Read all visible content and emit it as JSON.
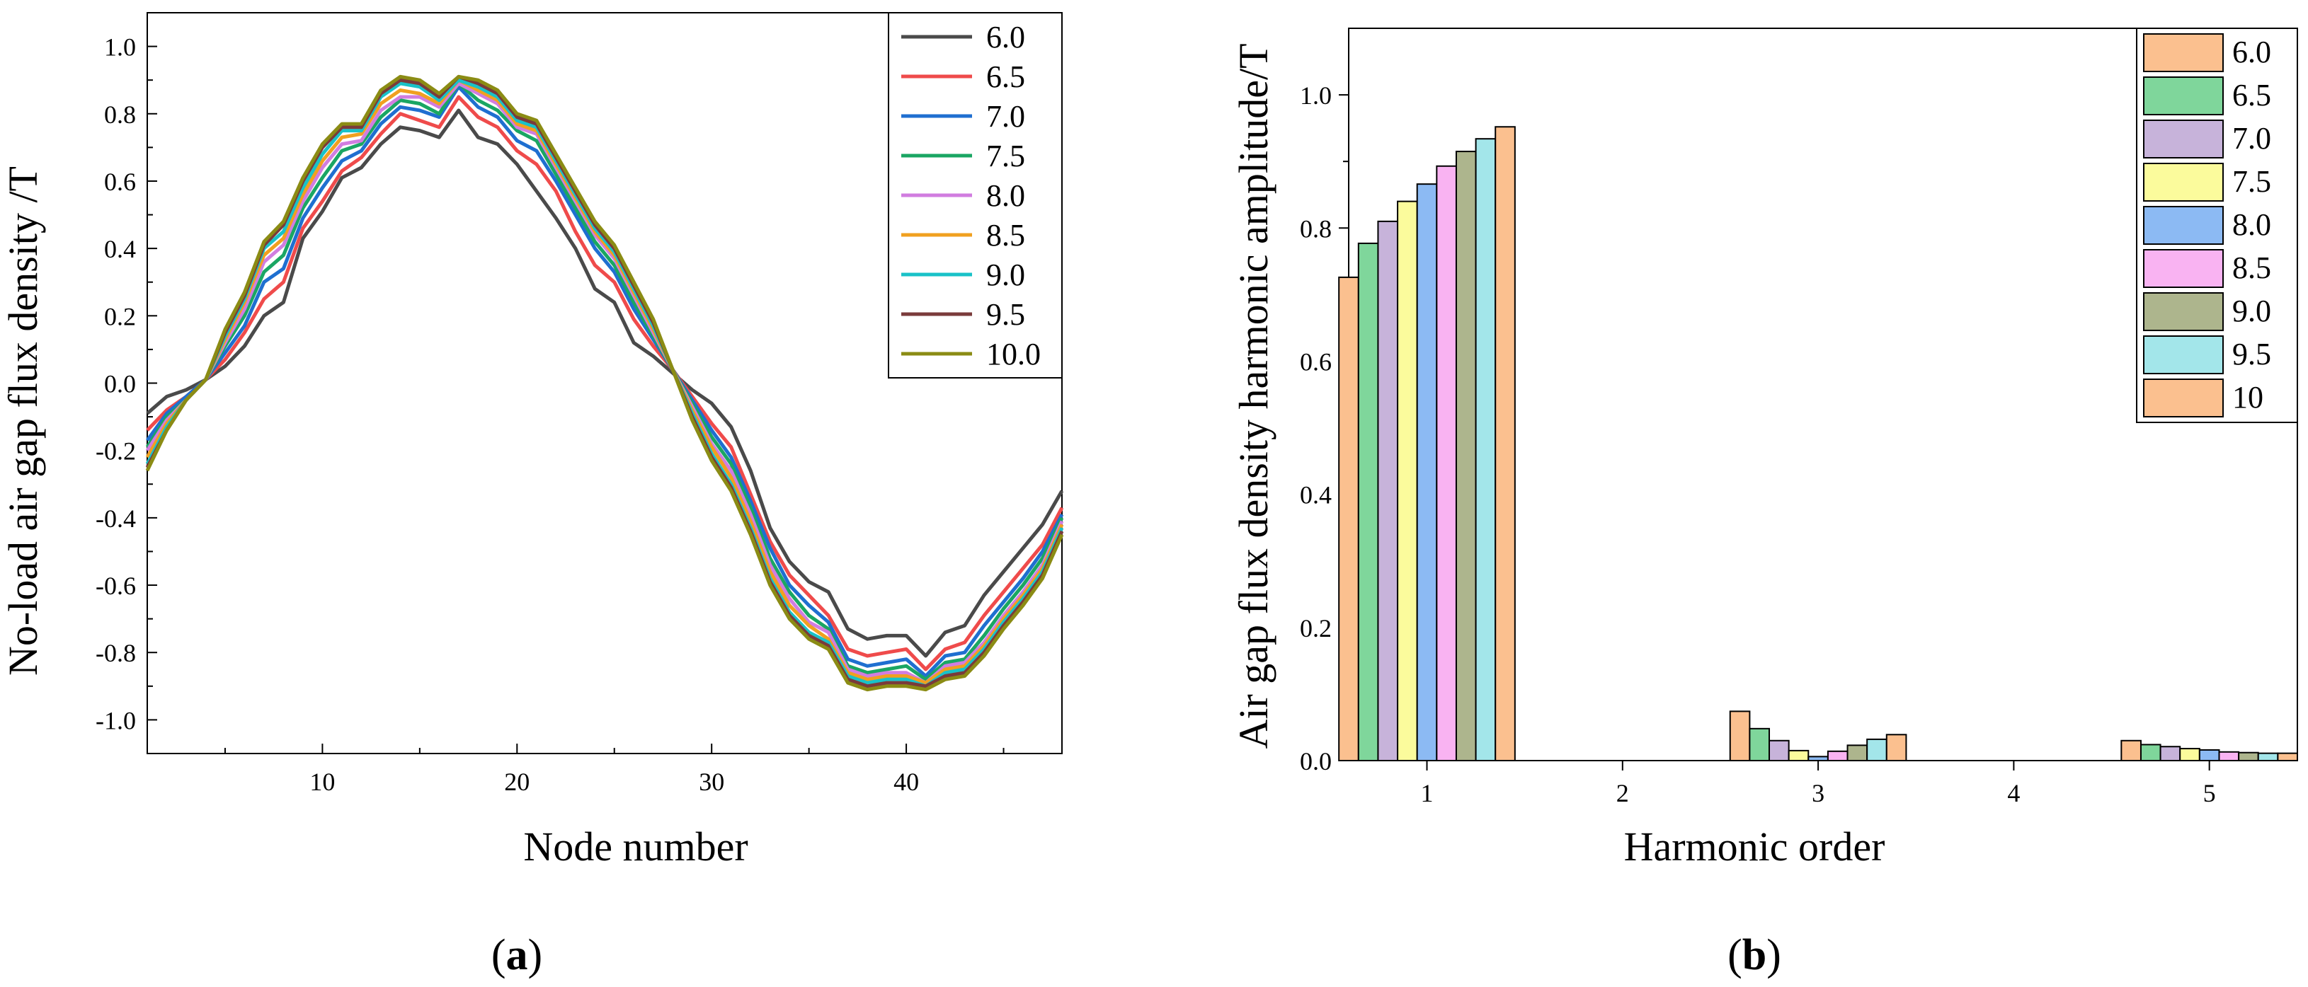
{
  "figure": {
    "panel_a_label": {
      "open": "(",
      "letter": "a",
      "close": ")"
    },
    "panel_b_label": {
      "open": "(",
      "letter": "b",
      "close": ")"
    }
  },
  "chart_data": [
    {
      "type": "line",
      "panel": "a",
      "title": "",
      "xlabel": "Node number",
      "ylabel": "No-load air gap flux density /T",
      "xlim": [
        1,
        48
      ],
      "ylim": [
        -1.1,
        1.1
      ],
      "xticks": [
        10,
        20,
        30,
        40
      ],
      "xtick_labels": [
        "10",
        "20",
        "30",
        "40"
      ],
      "yticks": [
        1.0,
        0.8,
        0.6,
        0.4,
        0.2,
        0.0,
        -0.2,
        -0.4,
        -0.6,
        -0.8,
        -1.0
      ],
      "ytick_labels": [
        "1.0",
        "0.8",
        "0.6",
        "0.4",
        "0.2",
        "0.0",
        "-0.2",
        "-0.4",
        "-0.6",
        "-0.8",
        "-1.0"
      ],
      "legend_position": "top-right",
      "x": [
        1,
        2,
        3,
        4,
        5,
        6,
        7,
        8,
        9,
        10,
        11,
        12,
        13,
        14,
        15,
        16,
        17,
        18,
        19,
        20,
        21,
        22,
        23,
        24,
        25,
        26,
        27,
        28,
        29,
        30,
        31,
        32,
        33,
        34,
        35,
        36,
        37,
        38,
        39,
        40,
        41,
        42,
        43,
        44,
        45,
        46,
        47,
        48
      ],
      "series": [
        {
          "name": "6.0",
          "color": "#4a4a4a",
          "values": [
            -0.09,
            -0.04,
            -0.02,
            0.01,
            0.05,
            0.11,
            0.2,
            0.24,
            0.43,
            0.51,
            0.61,
            0.64,
            0.71,
            0.76,
            0.75,
            0.73,
            0.81,
            0.73,
            0.71,
            0.65,
            0.57,
            0.49,
            0.4,
            0.28,
            0.24,
            0.12,
            0.08,
            0.03,
            -0.02,
            -0.06,
            -0.13,
            -0.26,
            -0.43,
            -0.53,
            -0.59,
            -0.62,
            -0.73,
            -0.76,
            -0.75,
            -0.75,
            -0.81,
            -0.74,
            -0.72,
            -0.63,
            -0.56,
            -0.49,
            -0.42,
            -0.32
          ]
        },
        {
          "name": "6.5",
          "color": "#ef4b4b",
          "values": [
            -0.14,
            -0.08,
            -0.04,
            0.01,
            0.07,
            0.15,
            0.25,
            0.3,
            0.46,
            0.54,
            0.63,
            0.67,
            0.74,
            0.8,
            0.78,
            0.76,
            0.85,
            0.79,
            0.76,
            0.69,
            0.65,
            0.57,
            0.45,
            0.35,
            0.3,
            0.19,
            0.11,
            0.04,
            -0.04,
            -0.12,
            -0.19,
            -0.33,
            -0.47,
            -0.57,
            -0.63,
            -0.69,
            -0.79,
            -0.81,
            -0.8,
            -0.79,
            -0.85,
            -0.79,
            -0.77,
            -0.69,
            -0.62,
            -0.55,
            -0.48,
            -0.37
          ]
        },
        {
          "name": "7.0",
          "color": "#1f6fd0",
          "values": [
            -0.17,
            -0.09,
            -0.04,
            0.01,
            0.09,
            0.17,
            0.3,
            0.34,
            0.49,
            0.58,
            0.66,
            0.69,
            0.77,
            0.82,
            0.81,
            0.79,
            0.88,
            0.82,
            0.79,
            0.72,
            0.69,
            0.6,
            0.5,
            0.4,
            0.33,
            0.22,
            0.13,
            0.04,
            -0.05,
            -0.14,
            -0.22,
            -0.35,
            -0.49,
            -0.6,
            -0.66,
            -0.71,
            -0.82,
            -0.84,
            -0.83,
            -0.82,
            -0.87,
            -0.81,
            -0.8,
            -0.72,
            -0.65,
            -0.58,
            -0.5,
            -0.39
          ]
        },
        {
          "name": "7.5",
          "color": "#1aa663",
          "values": [
            -0.19,
            -0.1,
            -0.05,
            0.01,
            0.11,
            0.2,
            0.33,
            0.38,
            0.52,
            0.61,
            0.69,
            0.71,
            0.79,
            0.84,
            0.83,
            0.8,
            0.89,
            0.84,
            0.81,
            0.75,
            0.72,
            0.62,
            0.52,
            0.42,
            0.35,
            0.24,
            0.14,
            0.04,
            -0.06,
            -0.16,
            -0.24,
            -0.37,
            -0.52,
            -0.62,
            -0.69,
            -0.73,
            -0.84,
            -0.86,
            -0.85,
            -0.84,
            -0.88,
            -0.83,
            -0.82,
            -0.75,
            -0.67,
            -0.6,
            -0.52,
            -0.4
          ]
        },
        {
          "name": "8.0",
          "color": "#d17de0",
          "values": [
            -0.2,
            -0.11,
            -0.05,
            0.01,
            0.12,
            0.22,
            0.36,
            0.41,
            0.54,
            0.64,
            0.71,
            0.72,
            0.81,
            0.85,
            0.85,
            0.82,
            0.89,
            0.86,
            0.83,
            0.76,
            0.74,
            0.64,
            0.54,
            0.44,
            0.37,
            0.26,
            0.15,
            0.04,
            -0.07,
            -0.18,
            -0.26,
            -0.39,
            -0.54,
            -0.64,
            -0.71,
            -0.74,
            -0.85,
            -0.87,
            -0.86,
            -0.86,
            -0.89,
            -0.84,
            -0.83,
            -0.77,
            -0.69,
            -0.62,
            -0.54,
            -0.41
          ]
        },
        {
          "name": "8.5",
          "color": "#f0a020",
          "values": [
            -0.22,
            -0.12,
            -0.05,
            0.01,
            0.13,
            0.24,
            0.38,
            0.43,
            0.56,
            0.66,
            0.73,
            0.74,
            0.83,
            0.87,
            0.86,
            0.83,
            0.9,
            0.87,
            0.84,
            0.77,
            0.75,
            0.65,
            0.55,
            0.45,
            0.38,
            0.27,
            0.16,
            0.04,
            -0.08,
            -0.19,
            -0.28,
            -0.41,
            -0.56,
            -0.66,
            -0.72,
            -0.76,
            -0.86,
            -0.88,
            -0.87,
            -0.87,
            -0.89,
            -0.85,
            -0.84,
            -0.78,
            -0.7,
            -0.63,
            -0.55,
            -0.42
          ]
        },
        {
          "name": "9.0",
          "color": "#19c2c8",
          "values": [
            -0.24,
            -0.13,
            -0.05,
            0.01,
            0.14,
            0.25,
            0.4,
            0.45,
            0.58,
            0.68,
            0.75,
            0.75,
            0.85,
            0.89,
            0.88,
            0.84,
            0.9,
            0.88,
            0.85,
            0.78,
            0.76,
            0.66,
            0.56,
            0.46,
            0.39,
            0.28,
            0.17,
            0.04,
            -0.09,
            -0.21,
            -0.3,
            -0.43,
            -0.58,
            -0.68,
            -0.74,
            -0.77,
            -0.87,
            -0.89,
            -0.88,
            -0.88,
            -0.9,
            -0.86,
            -0.85,
            -0.79,
            -0.71,
            -0.64,
            -0.56,
            -0.43
          ]
        },
        {
          "name": "9.5",
          "color": "#7a3b3b",
          "values": [
            -0.25,
            -0.14,
            -0.05,
            0.01,
            0.15,
            0.26,
            0.41,
            0.47,
            0.6,
            0.7,
            0.76,
            0.76,
            0.86,
            0.9,
            0.89,
            0.85,
            0.91,
            0.89,
            0.86,
            0.79,
            0.77,
            0.67,
            0.57,
            0.47,
            0.4,
            0.29,
            0.18,
            0.04,
            -0.1,
            -0.22,
            -0.31,
            -0.44,
            -0.59,
            -0.69,
            -0.75,
            -0.78,
            -0.88,
            -0.9,
            -0.89,
            -0.89,
            -0.9,
            -0.87,
            -0.86,
            -0.8,
            -0.72,
            -0.65,
            -0.57,
            -0.44
          ]
        },
        {
          "name": "10.0",
          "color": "#8b8c14",
          "values": [
            -0.26,
            -0.14,
            -0.05,
            0.01,
            0.16,
            0.27,
            0.42,
            0.48,
            0.61,
            0.71,
            0.77,
            0.77,
            0.87,
            0.91,
            0.9,
            0.86,
            0.91,
            0.9,
            0.87,
            0.8,
            0.78,
            0.68,
            0.58,
            0.48,
            0.41,
            0.3,
            0.19,
            0.04,
            -0.11,
            -0.23,
            -0.32,
            -0.45,
            -0.6,
            -0.7,
            -0.76,
            -0.79,
            -0.89,
            -0.91,
            -0.9,
            -0.9,
            -0.91,
            -0.88,
            -0.87,
            -0.81,
            -0.73,
            -0.66,
            -0.58,
            -0.45
          ]
        }
      ]
    },
    {
      "type": "bar",
      "panel": "b",
      "title": "",
      "xlabel": "Harmonic order",
      "ylabel": "Air gap flux density harmonic amplitude/T",
      "xlim": [
        0.6,
        5.45
      ],
      "ylim": [
        0,
        1.1
      ],
      "xticks": [
        1,
        2,
        3,
        4,
        5
      ],
      "xtick_labels": [
        "1",
        "2",
        "3",
        "4",
        "5"
      ],
      "yticks": [
        0.0,
        0.2,
        0.4,
        0.6,
        0.8,
        1.0
      ],
      "ytick_labels": [
        "0.0",
        "0.2",
        "0.4",
        "0.6",
        "0.8",
        "1.0"
      ],
      "legend_position": "top-right",
      "categories": [
        1,
        2,
        3,
        4,
        5
      ],
      "bar_offsets": [
        -0.4,
        -0.3,
        -0.2,
        -0.1,
        0.0,
        0.1,
        0.2,
        0.3,
        0.4
      ],
      "bar_width": 0.1,
      "series": [
        {
          "name": "6.0",
          "color": "#fbc08f",
          "values": [
            0.726,
            0,
            0.074,
            0,
            0.03
          ]
        },
        {
          "name": "6.5",
          "color": "#7fd69b",
          "values": [
            0.777,
            0,
            0.048,
            0,
            0.024
          ]
        },
        {
          "name": "7.0",
          "color": "#c7b3da",
          "values": [
            0.81,
            0,
            0.03,
            0,
            0.021
          ]
        },
        {
          "name": "7.5",
          "color": "#fbfb9c",
          "values": [
            0.84,
            0,
            0.015,
            0,
            0.018
          ]
        },
        {
          "name": "8.0",
          "color": "#8cbaf3",
          "values": [
            0.866,
            0,
            0.006,
            0,
            0.016
          ]
        },
        {
          "name": "8.5",
          "color": "#f9b3f2",
          "values": [
            0.893,
            0,
            0.014,
            0,
            0.013
          ]
        },
        {
          "name": "9.0",
          "color": "#adb58d",
          "values": [
            0.915,
            0,
            0.023,
            0,
            0.012
          ]
        },
        {
          "name": "9.5",
          "color": "#a3e6ea",
          "values": [
            0.934,
            0,
            0.032,
            0,
            0.011
          ]
        },
        {
          "name": "10",
          "color": "#fbc08f",
          "values": [
            0.952,
            0,
            0.039,
            0,
            0.011
          ]
        }
      ]
    }
  ]
}
